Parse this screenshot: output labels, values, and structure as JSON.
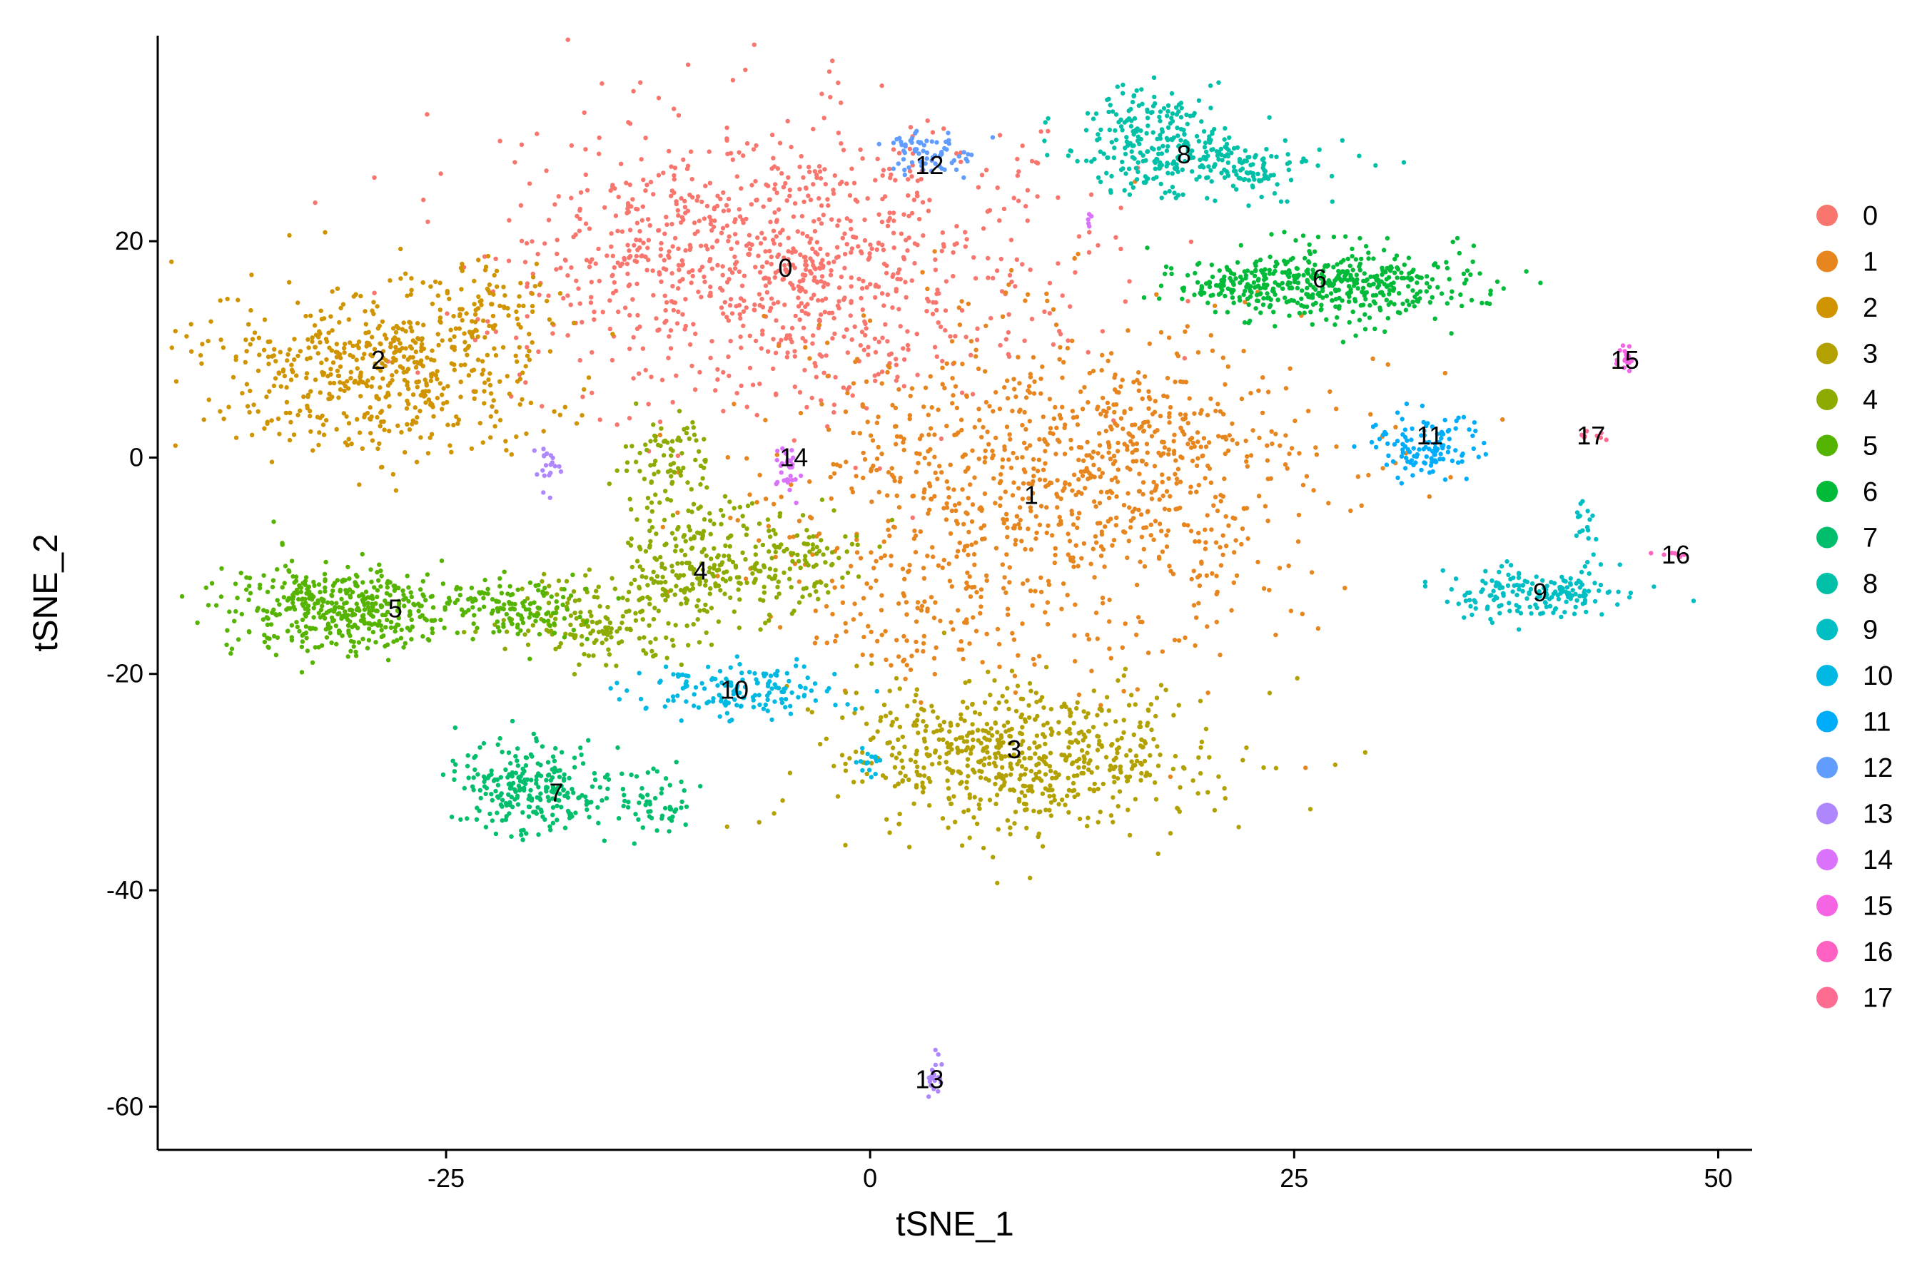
{
  "chart_data": {
    "type": "scatter",
    "title": "",
    "xlabel": "tSNE_1",
    "ylabel": "tSNE_2",
    "xlim": [
      -42,
      52
    ],
    "ylim": [
      -64,
      39
    ],
    "x_ticks": [
      -25,
      0,
      25,
      50
    ],
    "x_tick_labels": [
      "-25",
      "0",
      "25",
      "50"
    ],
    "y_ticks": [
      -60,
      -40,
      -20,
      0,
      20
    ],
    "y_tick_labels": [
      "-60",
      "-40",
      "-20",
      "0",
      "20"
    ],
    "grid": false,
    "legend_position": "right",
    "clusters": [
      {
        "name": "0",
        "color": "#F8766D",
        "label_pos": [
          -5,
          17.5
        ],
        "blobs": [
          {
            "cx": -5,
            "cy": 18,
            "sx": 8,
            "sy": 6.5,
            "n": 1000
          },
          {
            "cx": -15,
            "cy": 18,
            "sx": 3,
            "sy": 3,
            "n": 60
          }
        ]
      },
      {
        "name": "1",
        "color": "#E7851E",
        "label_pos": [
          9.5,
          -3.5
        ],
        "blobs": [
          {
            "cx": 10,
            "cy": -2,
            "sx": 8,
            "sy": 8,
            "n": 900
          },
          {
            "cx": 17,
            "cy": 1,
            "sx": 4,
            "sy": 4,
            "n": 150
          },
          {
            "cx": 3,
            "cy": -14,
            "sx": 3,
            "sy": 3,
            "n": 80
          }
        ]
      },
      {
        "name": "2",
        "color": "#D09400",
        "label_pos": [
          -29,
          9
        ],
        "blobs": [
          {
            "cx": -29,
            "cy": 8,
            "sx": 5,
            "sy": 3.8,
            "n": 550
          },
          {
            "cx": -23,
            "cy": 14,
            "sx": 2.5,
            "sy": 2.5,
            "n": 80
          }
        ]
      },
      {
        "name": "3",
        "color": "#B2A100",
        "label_pos": [
          8.5,
          -27
        ],
        "blobs": [
          {
            "cx": 9,
            "cy": -27.5,
            "sx": 5.5,
            "sy": 3.5,
            "n": 650
          }
        ]
      },
      {
        "name": "4",
        "color": "#8BAB00",
        "label_pos": [
          -10,
          -10.5
        ],
        "blobs": [
          {
            "cx": -10,
            "cy": -10,
            "sx": 2.5,
            "sy": 3,
            "n": 250
          },
          {
            "cx": -12,
            "cy": 0,
            "sx": 1.5,
            "sy": 2,
            "n": 80
          },
          {
            "cx": -16,
            "cy": -15,
            "sx": 2.5,
            "sy": 2,
            "n": 150
          },
          {
            "cx": -4,
            "cy": -9,
            "sx": 2,
            "sy": 2,
            "n": 80
          }
        ]
      },
      {
        "name": "5",
        "color": "#55B400",
        "label_pos": [
          -28,
          -14
        ],
        "blobs": [
          {
            "cx": -31,
            "cy": -14,
            "sx": 3.5,
            "sy": 2,
            "n": 450
          },
          {
            "cx": -21,
            "cy": -14,
            "sx": 2,
            "sy": 1.5,
            "n": 120
          }
        ]
      },
      {
        "name": "6",
        "color": "#00BA38",
        "label_pos": [
          26.5,
          16.5
        ],
        "blobs": [
          {
            "cx": 28,
            "cy": 16,
            "sx": 4,
            "sy": 1.8,
            "n": 400
          },
          {
            "cx": 22,
            "cy": 16,
            "sx": 2.5,
            "sy": 0.9,
            "n": 100
          }
        ]
      },
      {
        "name": "7",
        "color": "#00BE6C",
        "label_pos": [
          -18.5,
          -31
        ],
        "blobs": [
          {
            "cx": -20,
            "cy": -30.5,
            "sx": 2.3,
            "sy": 2,
            "n": 250
          },
          {
            "cx": -13,
            "cy": -32,
            "sx": 1.5,
            "sy": 1.5,
            "n": 60
          }
        ]
      },
      {
        "name": "8",
        "color": "#00C1A7",
        "label_pos": [
          18.5,
          28
        ],
        "blobs": [
          {
            "cx": 17,
            "cy": 29,
            "sx": 2.5,
            "sy": 2.5,
            "n": 250
          },
          {
            "cx": 22,
            "cy": 27,
            "sx": 2.5,
            "sy": 1.5,
            "n": 120
          }
        ]
      },
      {
        "name": "9",
        "color": "#00BFC4",
        "label_pos": [
          39.5,
          -12.5
        ],
        "blobs": [
          {
            "cx": 39,
            "cy": -12.5,
            "sx": 2.8,
            "sy": 1.2,
            "n": 180
          },
          {
            "cx": 42,
            "cy": -6,
            "sx": 0.3,
            "sy": 1,
            "n": 15
          }
        ]
      },
      {
        "name": "10",
        "color": "#00B9E3",
        "label_pos": [
          -8,
          -21.5
        ],
        "blobs": [
          {
            "cx": -7.5,
            "cy": -21.5,
            "sx": 3,
            "sy": 1.3,
            "n": 150
          },
          {
            "cx": 0,
            "cy": -28,
            "sx": 0.4,
            "sy": 0.8,
            "n": 15
          }
        ]
      },
      {
        "name": "11",
        "color": "#00ADFA",
        "label_pos": [
          33,
          2
        ],
        "blobs": [
          {
            "cx": 33,
            "cy": 1,
            "sx": 1.5,
            "sy": 1.5,
            "n": 120
          }
        ]
      },
      {
        "name": "12",
        "color": "#619CFF",
        "label_pos": [
          3.5,
          27
        ],
        "blobs": [
          {
            "cx": 3.5,
            "cy": 28,
            "sx": 1.5,
            "sy": 1,
            "n": 70
          }
        ]
      },
      {
        "name": "13",
        "color": "#AE87FF",
        "label_pos": [
          3.5,
          -57.5
        ],
        "blobs": [
          {
            "cx": 3.8,
            "cy": -57.5,
            "sx": 0.3,
            "sy": 1,
            "n": 20
          },
          {
            "cx": -19,
            "cy": -1,
            "sx": 0.3,
            "sy": 1,
            "n": 20
          }
        ]
      },
      {
        "name": "14",
        "color": "#DB72FB",
        "label_pos": [
          -4.5,
          0
        ],
        "blobs": [
          {
            "cx": -5,
            "cy": -1,
            "sx": 0.4,
            "sy": 1.5,
            "n": 30
          },
          {
            "cx": 13,
            "cy": 22,
            "sx": 0.2,
            "sy": 0.4,
            "n": 5
          }
        ]
      },
      {
        "name": "15",
        "color": "#F564E3",
        "label_pos": [
          44.5,
          9
        ],
        "blobs": [
          {
            "cx": 44.5,
            "cy": 9.5,
            "sx": 0.3,
            "sy": 0.8,
            "n": 15
          }
        ]
      },
      {
        "name": "16",
        "color": "#FF61C3",
        "label_pos": [
          47.5,
          -9
        ],
        "blobs": [
          {
            "cx": 47.5,
            "cy": -9,
            "sx": 0.5,
            "sy": 0.2,
            "n": 8
          }
        ]
      },
      {
        "name": "17",
        "color": "#FF6C91",
        "label_pos": [
          42.5,
          2
        ],
        "blobs": [
          {
            "cx": 42.5,
            "cy": 2,
            "sx": 0.5,
            "sy": 0.3,
            "n": 8
          }
        ]
      }
    ]
  }
}
